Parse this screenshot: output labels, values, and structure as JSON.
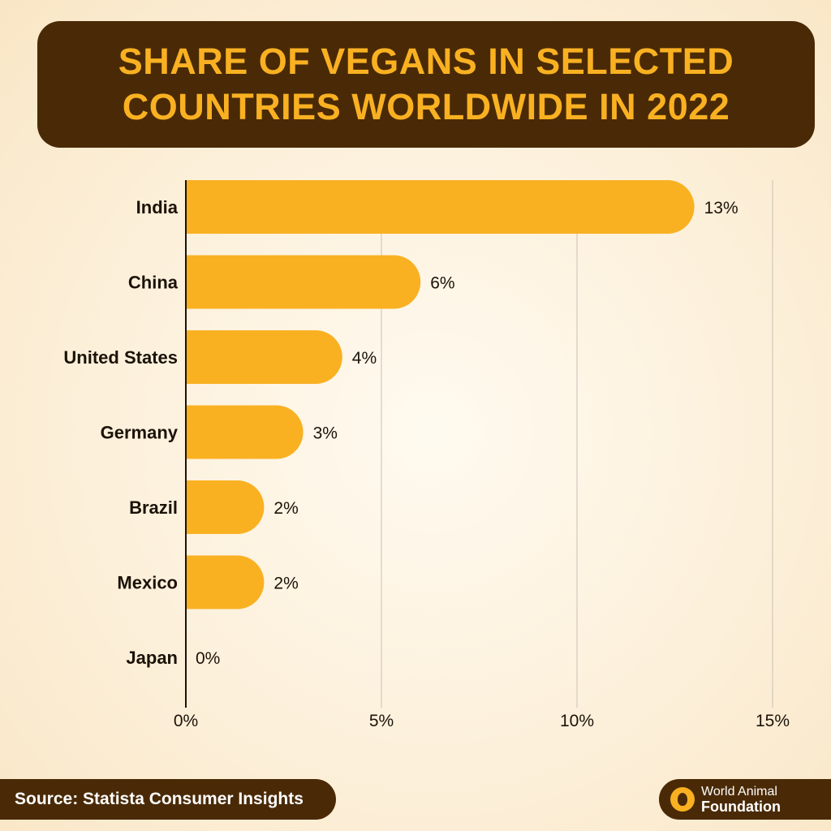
{
  "header": {
    "title": "SHARE OF VEGANS IN SELECTED COUNTRIES WORLDWIDE IN 2022"
  },
  "chart_data": {
    "type": "bar",
    "orientation": "horizontal",
    "categories": [
      "India",
      "China",
      "United States",
      "Germany",
      "Brazil",
      "Mexico",
      "Japan"
    ],
    "values": [
      13,
      6,
      4,
      3,
      2,
      2,
      0
    ],
    "value_labels": [
      "13%",
      "6%",
      "4%",
      "3%",
      "2%",
      "2%",
      "0%"
    ],
    "xlim": [
      0,
      15
    ],
    "xticks": [
      0,
      5,
      10,
      15
    ],
    "xtick_labels": [
      "0%",
      "5%",
      "10%",
      "15%"
    ],
    "grid": "vertical",
    "bar_color": "#f9b122"
  },
  "footer": {
    "source": "Source: Statista Consumer Insights",
    "logo_line1": "World Animal",
    "logo_line2": "Foundation"
  },
  "colors": {
    "dark_brown": "#4a2a06",
    "accent": "#f9b122"
  }
}
